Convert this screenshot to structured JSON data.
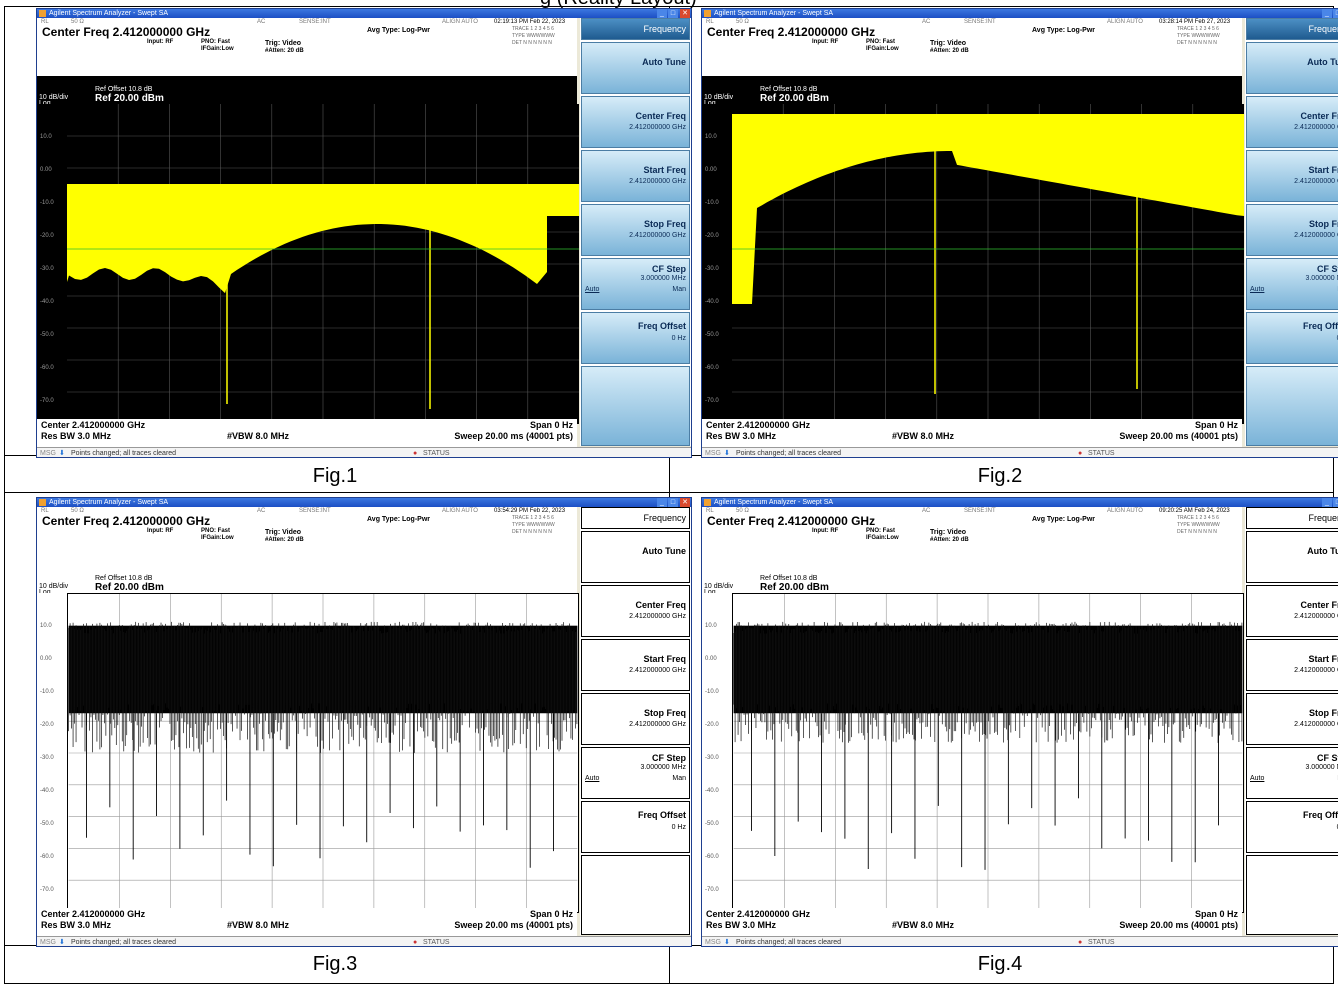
{
  "header_text": "g (Reality Layout)",
  "panels": [
    {
      "caption": "Fig.1",
      "theme": "color",
      "window_title": "Agilent Spectrum Analyzer - Swept SA",
      "status_left": "RL",
      "status_imp": "50 Ω",
      "status_ac": "AC",
      "status_sense": "SENSE:INT",
      "status_align": "ALIGN AUTO",
      "timestamp": "02:19:13 PM Feb 22, 2023",
      "center_freq": "Center Freq  2.412000000 GHz",
      "input": "Input: RF",
      "pno": "PNO: Fast",
      "ifgain": "IFGain:Low",
      "trig": "Trig: Video",
      "atten": "#Atten: 20 dB",
      "avg_type": "Avg Type: Log-Pwr",
      "trace_row": "TRACE 1 2 3 4 5 6",
      "type_row": "TYPE WWWWWW",
      "det_row": "DET N N N N N N",
      "ref_offset": "Ref Offset 10.8 dB",
      "ref_level": "Ref 20.00 dBm",
      "scale": "10 dB/div",
      "scale_type": "Log",
      "dvl": "-25.00 LVL",
      "center_bottom": "Center 2.412000000 GHz",
      "span": "Span 0 Hz",
      "res_bw": "Res BW 3.0 MHz",
      "vbw": "#VBW 8.0 MHz",
      "sweep": "Sweep  20.00 ms (40001 pts)",
      "msg": "Points changed; all traces cleared",
      "msg_label": "MSG",
      "status_label": "STATUS"
    },
    {
      "caption": "Fig.2",
      "theme": "color",
      "window_title": "Agilent Spectrum Analyzer - Swept SA",
      "status_left": "RL",
      "status_imp": "50 Ω",
      "status_ac": "AC",
      "status_sense": "SENSE:INT",
      "status_align": "ALIGN AUTO",
      "timestamp": "03:28:14 PM Feb 27, 2023",
      "center_freq": "Center Freq  2.412000000 GHz",
      "input": "Input: RF",
      "pno": "PNO: Fast",
      "ifgain": "IFGain:Low",
      "trig": "Trig: Video",
      "atten": "#Atten: 20 dB",
      "avg_type": "Avg Type: Log-Pwr",
      "trace_row": "TRACE 1 2 3 4 5 6",
      "type_row": "TYPE WWWWWW",
      "det_row": "DET N N N N N N",
      "ref_offset": "Ref Offset 10.8 dB",
      "ref_level": "Ref 20.00 dBm",
      "scale": "10 dB/div",
      "scale_type": "Log",
      "dvl": "-25.00 LVL",
      "center_bottom": "Center 2.412000000 GHz",
      "span": "Span 0 Hz",
      "res_bw": "Res BW 3.0 MHz",
      "vbw": "#VBW 8.0 MHz",
      "sweep": "Sweep  20.00 ms (40001 pts)",
      "msg": "Points changed; all traces cleared",
      "msg_label": "MSG",
      "status_label": "STATUS"
    },
    {
      "caption": "Fig.3",
      "theme": "mono",
      "window_title": "Agilent Spectrum Analyzer - Swept SA",
      "status_left": "RL",
      "status_imp": "50 Ω",
      "status_ac": "AC",
      "status_sense": "SENSE:INT",
      "status_align": "ALIGN AUTO",
      "timestamp": "03:54:29 PM Feb 22, 2023",
      "center_freq": "Center Freq  2.412000000 GHz",
      "input": "Input: RF",
      "pno": "PNO: Fast",
      "ifgain": "IFGain:Low",
      "trig": "Trig: Video",
      "atten": "#Atten: 20 dB",
      "avg_type": "Avg Type: Log-Pwr",
      "trace_row": "TRACE 1 2 3 4 5 6",
      "type_row": "TYPE WWWWWW",
      "det_row": "DET N N N N N N",
      "ref_offset": "Ref Offset 10.8 dB",
      "ref_level": "Ref 20.00 dBm",
      "scale": "10 dB/div",
      "scale_type": "Log",
      "dvl": "",
      "center_bottom": "Center 2.412000000 GHz",
      "span": "Span 0 Hz",
      "res_bw": "Res BW 3.0 MHz",
      "vbw": "#VBW 8.0 MHz",
      "sweep": "Sweep  20.00 ms (40001 pts)",
      "msg": "Points changed; all traces cleared",
      "msg_label": "MSG",
      "status_label": "STATUS"
    },
    {
      "caption": "Fig.4",
      "theme": "mono",
      "window_title": "Agilent Spectrum Analyzer - Swept SA",
      "status_left": "RL",
      "status_imp": "50 Ω",
      "status_ac": "AC",
      "status_sense": "SENSE:INT",
      "status_align": "ALIGN AUTO",
      "timestamp": "09:20:25 AM Feb 24, 2023",
      "center_freq": "Center Freq  2.412000000 GHz",
      "input": "Input: RF",
      "pno": "PNO: Fast",
      "ifgain": "IFGain:Low",
      "trig": "Trig: Video",
      "atten": "#Atten: 20 dB",
      "avg_type": "Avg Type: Log-Pwr",
      "trace_row": "TRACE 1 2 3 4 5 6",
      "type_row": "TYPE WWWWWW",
      "det_row": "DET N N N N N N",
      "ref_offset": "Ref Offset 10.8 dB",
      "ref_level": "Ref 20.00 dBm",
      "scale": "10 dB/div",
      "scale_type": "Log",
      "dvl": "",
      "center_bottom": "Center 2.412000000 GHz",
      "span": "Span 0 Hz",
      "res_bw": "Res BW 3.0 MHz",
      "vbw": "#VBW 8.0 MHz",
      "sweep": "Sweep  20.00 ms (40001 pts)",
      "msg": "Points changed; all traces cleared",
      "msg_label": "MSG",
      "status_label": "STATUS"
    }
  ],
  "softkeys": {
    "menu_title": "Frequency",
    "auto_tune": "Auto Tune",
    "center_freq_label": "Center Freq",
    "center_freq_value": "2.412000000 GHz",
    "start_freq_label": "Start Freq",
    "start_freq_value": "2.412000000 GHz",
    "stop_freq_label": "Stop Freq",
    "stop_freq_value": "2.412000000 GHz",
    "cf_step_label": "CF Step",
    "cf_step_value": "3.000000 MHz",
    "cf_step_auto": "Auto",
    "cf_step_man": "Man",
    "freq_offset_label": "Freq Offset",
    "freq_offset_value": "0 Hz"
  },
  "y_axis_labels": [
    "10.0",
    "0.00",
    "-10.0",
    "-20.0",
    "-30.0",
    "-40.0",
    "-50.0",
    "-60.0",
    "-70.0"
  ],
  "colors": {
    "trace_color": "#ffff00",
    "screen_bg_color": "#000000",
    "screen_bg_mono": "#ffffff",
    "display_line": "#2fbf2f"
  }
}
